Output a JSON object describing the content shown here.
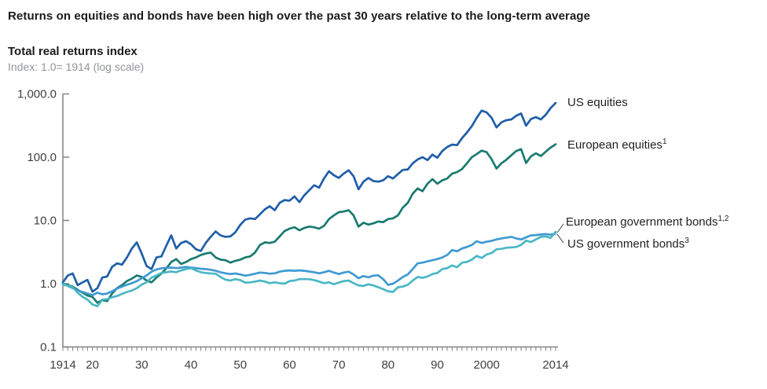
{
  "header": {
    "title": "Returns on equities and bonds have been high over the past 30 years relative to the long-term average",
    "subtitle": "Total real returns index",
    "axis_note": "Index: 1.0= 1914 (log scale)"
  },
  "palette": {
    "us_equities": "#1f5ea8",
    "european_equities": "#1a7a70",
    "european_government_bonds": "#3f9ad2",
    "us_government_bonds": "#4ab7c3",
    "axis_line": "#808285",
    "tick_label": "#414042",
    "callout": "#404040"
  },
  "chart_data": {
    "type": "line",
    "title": "Total real returns index",
    "xlabel": "",
    "ylabel": "Index: 1.0= 1914 (log scale)",
    "y_scale": "log",
    "ylim": [
      0.1,
      1000
    ],
    "xlim": [
      1914,
      2014
    ],
    "grid": false,
    "legend_position": "right-of-line-ends",
    "y_axis": {
      "ticks": [
        {
          "label": "1,000.0",
          "value": 1000
        },
        {
          "label": "100.0",
          "value": 100
        },
        {
          "label": "10.0",
          "value": 10
        },
        {
          "label": "1.0",
          "value": 1
        },
        {
          "label": "0.1",
          "value": 0.1
        }
      ]
    },
    "x_axis": {
      "minor_tick_every_years": 1,
      "ticks": [
        {
          "label": "1914",
          "year": 1914
        },
        {
          "label": "20",
          "year": 1920
        },
        {
          "label": "30",
          "year": 1930
        },
        {
          "label": "40",
          "year": 1940
        },
        {
          "label": "50",
          "year": 1950
        },
        {
          "label": "60",
          "year": 1960
        },
        {
          "label": "70",
          "year": 1970
        },
        {
          "label": "80",
          "year": 1980
        },
        {
          "label": "90",
          "year": 1990
        },
        {
          "label": "2000",
          "year": 2000
        },
        {
          "label": "2014",
          "year": 2014
        }
      ]
    },
    "start_year": 1914,
    "series": [
      {
        "name": "us-equities",
        "label": "US equities",
        "label_sup": "",
        "color": "#1f5ea8",
        "values": [
          1.05,
          1.35,
          1.45,
          0.95,
          1.05,
          1.15,
          0.75,
          0.85,
          1.25,
          1.3,
          1.85,
          2.1,
          2.0,
          2.6,
          3.6,
          4.5,
          3.0,
          1.9,
          1.7,
          2.6,
          2.7,
          4.0,
          5.8,
          3.6,
          4.4,
          4.7,
          4.2,
          3.5,
          3.3,
          4.4,
          5.5,
          6.7,
          5.8,
          5.5,
          5.6,
          6.5,
          8.5,
          10.3,
          10.8,
          10.5,
          12.5,
          15.0,
          16.8,
          14.5,
          19.0,
          21.0,
          20.5,
          24.0,
          19.5,
          25.0,
          30.0,
          36.0,
          33.0,
          46.0,
          60.0,
          52.0,
          47.0,
          55.0,
          62.0,
          50.0,
          31.0,
          41.0,
          47.0,
          42.0,
          41.0,
          43.0,
          50.0,
          46.0,
          54.0,
          63.0,
          64.0,
          80.0,
          92.0,
          100.0,
          90.0,
          110.0,
          98.0,
          125.0,
          145.0,
          158.0,
          155.0,
          200.0,
          245.0,
          310.0,
          420.0,
          545.0,
          510.0,
          420.0,
          295.0,
          355.0,
          385.0,
          395.0,
          450.0,
          490.0,
          315.0,
          400.0,
          430.0,
          395.0,
          470.0,
          600.0,
          720.0
        ]
      },
      {
        "name": "european-equities",
        "label": "European equities",
        "label_sup": "1",
        "color": "#1a7a70",
        "values": [
          1.0,
          0.95,
          0.9,
          0.8,
          0.72,
          0.65,
          0.62,
          0.5,
          0.55,
          0.53,
          0.7,
          0.85,
          0.95,
          1.1,
          1.2,
          1.35,
          1.28,
          1.12,
          1.05,
          1.25,
          1.45,
          1.75,
          2.2,
          2.45,
          2.05,
          2.2,
          2.45,
          2.6,
          2.85,
          3.0,
          3.1,
          2.6,
          2.4,
          2.35,
          2.15,
          2.3,
          2.4,
          2.6,
          2.7,
          3.1,
          4.1,
          4.5,
          4.4,
          4.6,
          5.6,
          6.8,
          7.4,
          7.8,
          7.0,
          7.6,
          8.0,
          7.8,
          7.4,
          8.2,
          10.5,
          12.0,
          13.5,
          13.8,
          14.5,
          12.0,
          8.0,
          9.2,
          8.6,
          9.0,
          9.6,
          9.4,
          10.5,
          10.8,
          12.0,
          16.0,
          19.0,
          26.5,
          32.0,
          29.0,
          38.0,
          45.0,
          38.0,
          43.0,
          46.0,
          55.0,
          58.0,
          65.0,
          80.0,
          100.0,
          112.0,
          127.0,
          120.0,
          93.0,
          66.0,
          80.0,
          91.0,
          107.0,
          125.0,
          134.0,
          81.0,
          103.0,
          115.0,
          104.0,
          122.0,
          142.0,
          160.0
        ]
      },
      {
        "name": "european-government-bonds",
        "label": "European government bonds",
        "label_sup": "1,2",
        "color": "#3f9ad2",
        "values": [
          1.0,
          0.92,
          0.85,
          0.78,
          0.74,
          0.7,
          0.66,
          0.72,
          0.68,
          0.7,
          0.76,
          0.84,
          0.9,
          0.96,
          1.02,
          1.1,
          1.22,
          1.35,
          1.55,
          1.68,
          1.75,
          1.78,
          1.8,
          1.76,
          1.8,
          1.84,
          1.8,
          1.76,
          1.72,
          1.7,
          1.66,
          1.6,
          1.52,
          1.46,
          1.42,
          1.45,
          1.4,
          1.34,
          1.38,
          1.44,
          1.5,
          1.48,
          1.44,
          1.46,
          1.55,
          1.6,
          1.62,
          1.6,
          1.62,
          1.6,
          1.56,
          1.52,
          1.46,
          1.52,
          1.6,
          1.5,
          1.42,
          1.5,
          1.55,
          1.4,
          1.22,
          1.32,
          1.26,
          1.34,
          1.36,
          1.18,
          0.96,
          1.0,
          1.12,
          1.28,
          1.4,
          1.7,
          2.1,
          2.15,
          2.25,
          2.35,
          2.45,
          2.6,
          2.85,
          3.4,
          3.25,
          3.6,
          3.8,
          4.1,
          4.7,
          4.4,
          4.6,
          4.75,
          5.0,
          5.2,
          5.35,
          5.5,
          5.2,
          5.0,
          5.4,
          5.8,
          5.85,
          6.0,
          6.1,
          5.95,
          6.2
        ]
      },
      {
        "name": "us-government-bonds",
        "label": "US government bonds",
        "label_sup": "3",
        "color": "#4ab7c3",
        "values": [
          0.97,
          0.93,
          0.88,
          0.72,
          0.62,
          0.56,
          0.47,
          0.44,
          0.56,
          0.57,
          0.61,
          0.64,
          0.69,
          0.74,
          0.78,
          0.85,
          0.97,
          1.05,
          1.25,
          1.35,
          1.48,
          1.52,
          1.56,
          1.52,
          1.62,
          1.7,
          1.76,
          1.62,
          1.52,
          1.48,
          1.45,
          1.44,
          1.28,
          1.16,
          1.12,
          1.18,
          1.14,
          1.04,
          1.05,
          1.08,
          1.12,
          1.08,
          1.02,
          1.05,
          1.02,
          1.0,
          1.1,
          1.12,
          1.18,
          1.18,
          1.18,
          1.14,
          1.08,
          1.02,
          1.05,
          0.98,
          1.04,
          1.1,
          1.12,
          1.02,
          0.94,
          0.92,
          0.98,
          0.94,
          0.88,
          0.82,
          0.76,
          0.74,
          0.88,
          0.9,
          0.96,
          1.12,
          1.28,
          1.24,
          1.3,
          1.42,
          1.48,
          1.7,
          1.76,
          1.95,
          1.82,
          2.15,
          2.2,
          2.4,
          2.75,
          2.55,
          2.9,
          3.05,
          3.5,
          3.55,
          3.7,
          3.75,
          3.8,
          4.1,
          4.8,
          4.55,
          5.0,
          5.5,
          5.6,
          5.3,
          6.6
        ]
      }
    ]
  }
}
